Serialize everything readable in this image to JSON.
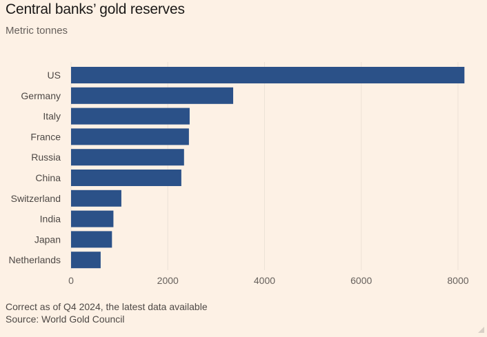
{
  "header": {
    "title": "Central banks’ gold reserves",
    "subtitle": "Metric tonnes"
  },
  "footer": {
    "note": "Correct as of Q4 2024, the latest data available",
    "source": "Source: World Gold Council"
  },
  "colors": {
    "bar": "#2b5188",
    "background": "#fdf1e5",
    "grid": "#ece1d6"
  },
  "chart_data": {
    "type": "bar",
    "orientation": "horizontal",
    "title": "Central banks’ gold reserves",
    "subtitle": "Metric tonnes",
    "xlabel": "",
    "ylabel": "",
    "grid": true,
    "categories": [
      "US",
      "Germany",
      "Italy",
      "France",
      "Russia",
      "China",
      "Switzerland",
      "India",
      "Japan",
      "Netherlands"
    ],
    "values": [
      8133,
      3352,
      2452,
      2437,
      2336,
      2280,
      1040,
      876,
      846,
      612
    ],
    "xlim": [
      0,
      8300
    ],
    "xticks": [
      0,
      2000,
      4000,
      6000,
      8000
    ],
    "xtick_labels": [
      "0",
      "2000",
      "4000",
      "6000",
      "8000"
    ]
  }
}
